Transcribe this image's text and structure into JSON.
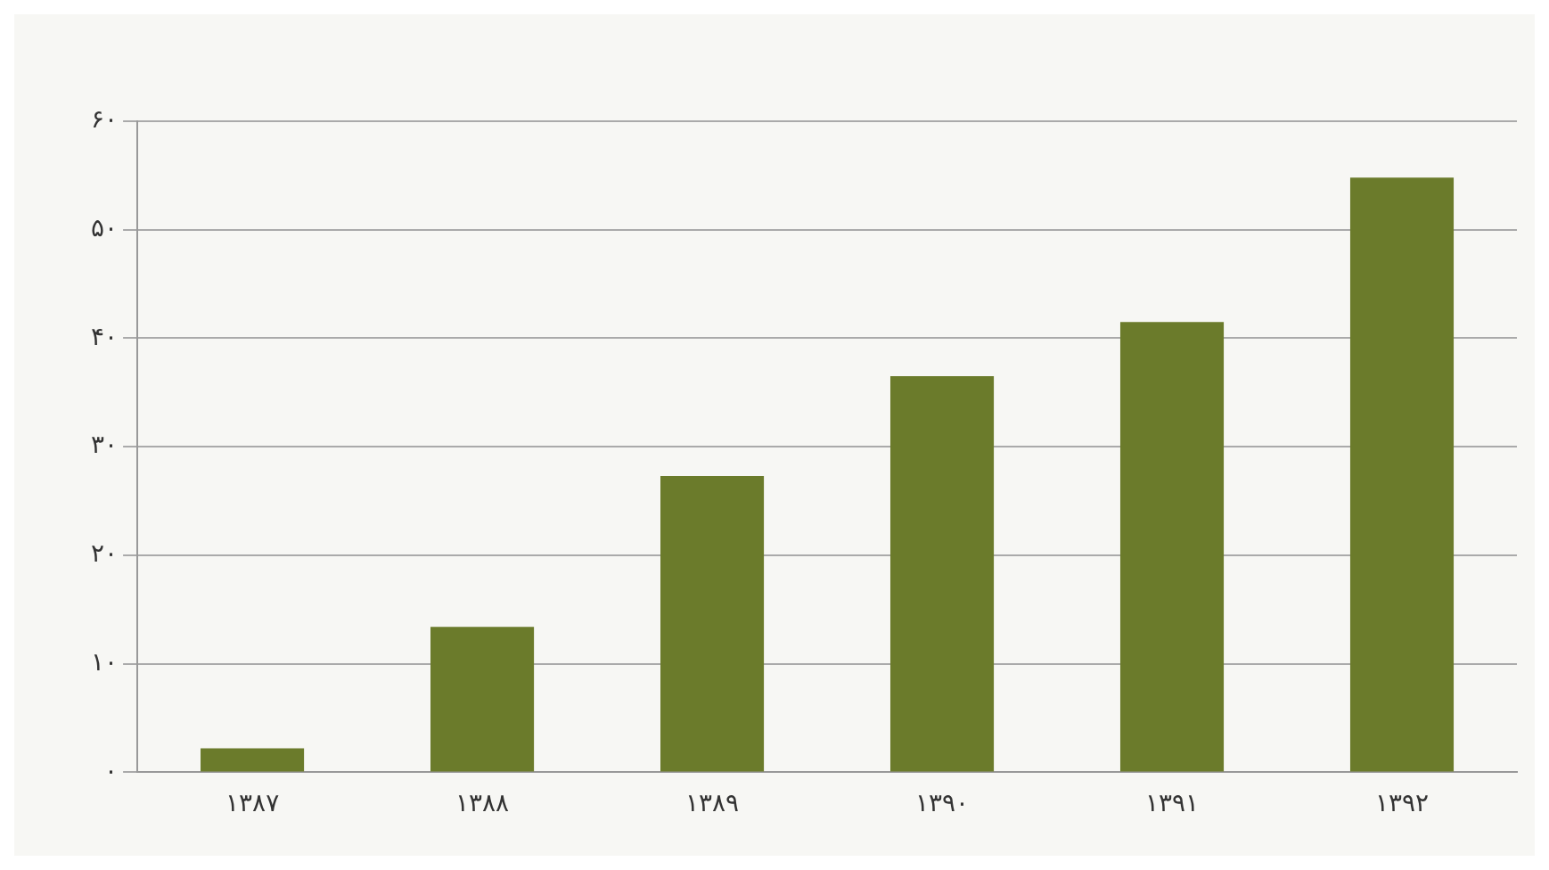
{
  "chart_data": {
    "type": "bar",
    "categories": [
      "۱۳۸۷",
      "۱۳۸۸",
      "۱۳۸۹",
      "۱۳۹۰",
      "۱۳۹۱",
      "۱۳۹۲"
    ],
    "values": [
      2.2,
      13.4,
      27.3,
      36.5,
      41.5,
      54.8
    ],
    "color": "#6b7b2b",
    "ylim": [
      0,
      60
    ],
    "yticks": [
      {
        "value": 0,
        "label": "۰"
      },
      {
        "value": 10,
        "label": "۱۰"
      },
      {
        "value": 20,
        "label": "۲۰"
      },
      {
        "value": 30,
        "label": "۳۰"
      },
      {
        "value": 40,
        "label": "۴۰"
      },
      {
        "value": 50,
        "label": "۵۰"
      },
      {
        "value": 60,
        "label": "۶۰"
      }
    ],
    "grid": "y"
  }
}
